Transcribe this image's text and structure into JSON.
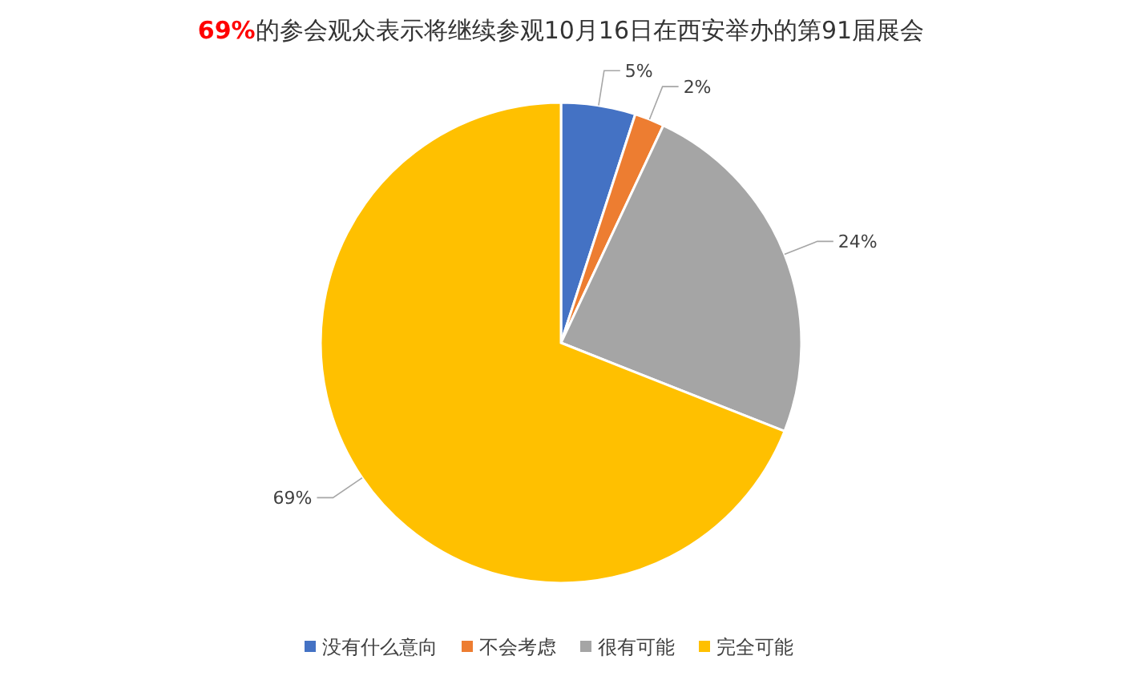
{
  "chart_data": {
    "type": "pie",
    "title": "**69%**的参会观众表示将继续参观10月16日在西安举办的第91届展会",
    "categories": [
      "没有什么意向",
      "不会考虑",
      "很有可能",
      "完全可能"
    ],
    "values": [
      5,
      2,
      24,
      69
    ],
    "colors": [
      "#4472c4",
      "#ed7d31",
      "#a5a5a5",
      "#ffc000"
    ],
    "value_labels": [
      "5%",
      "2%",
      "24%",
      "69%"
    ],
    "legend": "bottom"
  }
}
